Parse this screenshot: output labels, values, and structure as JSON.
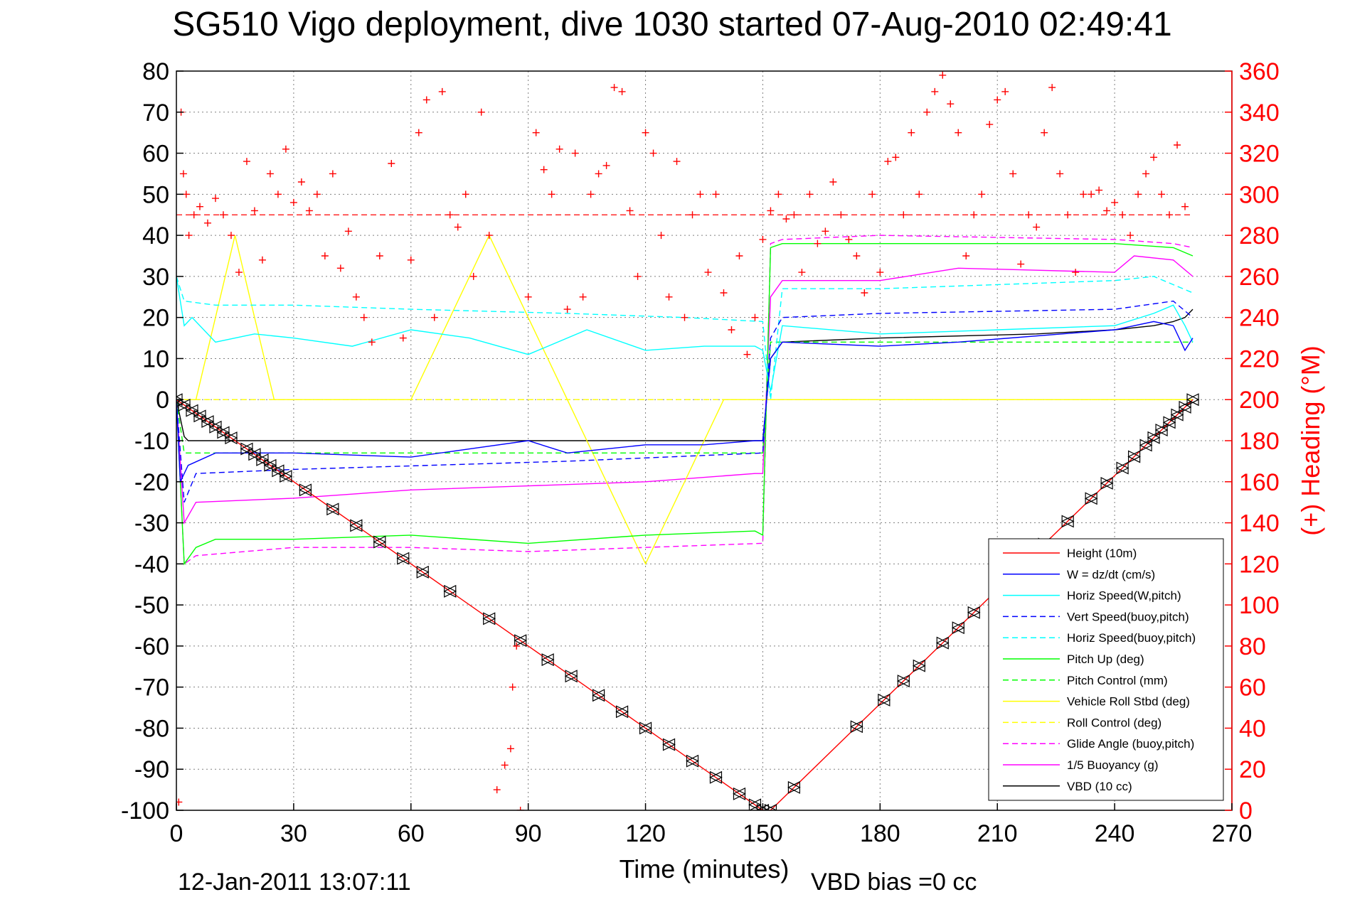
{
  "figure": {
    "title": "SG510 Vigo deployment, dive 1030 started 07-Aug-2010 02:49:41",
    "timestamp": "12-Jan-2011 13:07:11",
    "vbd_bias": "VBD bias =0 cc",
    "colors": {
      "background": "#ffffff",
      "axes": "#000000",
      "right_axis": "#ff0000",
      "grid": "#808080",
      "heading_marker": "#ff0000"
    }
  },
  "chart_data": {
    "type": "line",
    "xlabel": "Time (minutes)",
    "ylabel": "",
    "y2label": "(+) Heading (°M)",
    "xlim": [
      0,
      270
    ],
    "ylim": [
      -100,
      80
    ],
    "y2lim": [
      0,
      360
    ],
    "xticks": [
      0,
      30,
      60,
      90,
      120,
      150,
      180,
      210,
      240,
      270
    ],
    "yticks": [
      80,
      70,
      60,
      50,
      40,
      30,
      20,
      10,
      0,
      -10,
      -20,
      -30,
      -40,
      -50,
      -60,
      -70,
      -80,
      -90,
      -100
    ],
    "y2ticks": [
      360,
      340,
      320,
      300,
      280,
      260,
      240,
      220,
      200,
      180,
      160,
      140,
      120,
      100,
      80,
      60,
      40,
      20,
      0
    ],
    "grid": true,
    "legend_position": "bottom-right",
    "series": [
      {
        "name": "Height (10m)",
        "color": "#ff0000",
        "dash": "solid",
        "markers": "triangles",
        "x": [
          0,
          150,
          152,
          260
        ],
        "y": [
          0,
          -100,
          -100,
          0
        ]
      },
      {
        "name": "W = dz/dt (cm/s)",
        "color": "#0000ff",
        "dash": "solid",
        "x": [
          0,
          1,
          3,
          10,
          30,
          60,
          75,
          90,
          100,
          110,
          120,
          135,
          148,
          150,
          152,
          155,
          180,
          200,
          240,
          250,
          255,
          258,
          260
        ],
        "y": [
          0,
          -20,
          -16,
          -13,
          -13,
          -14,
          -12,
          -10,
          -13,
          -12,
          -11,
          -11,
          -10,
          -10,
          10,
          14,
          13,
          14,
          17,
          19,
          18,
          12,
          15
        ]
      },
      {
        "name": "Horiz Speed(W,pitch)",
        "color": "#00ffff",
        "dash": "solid",
        "x": [
          0,
          2,
          4,
          10,
          20,
          30,
          45,
          60,
          75,
          90,
          105,
          120,
          135,
          148,
          150,
          152,
          155,
          180,
          210,
          240,
          250,
          255,
          258,
          260
        ],
        "y": [
          30,
          18,
          20,
          14,
          16,
          15,
          13,
          17,
          15,
          11,
          17,
          12,
          13,
          13,
          12,
          2,
          18,
          16,
          17,
          18,
          21,
          23,
          18,
          14
        ]
      },
      {
        "name": "Vert Speed(buoy,pitch)",
        "color": "#0000ff",
        "dash": "dashed",
        "x": [
          0,
          2,
          5,
          30,
          100,
          150,
          152,
          155,
          180,
          240,
          255,
          260
        ],
        "y": [
          0,
          -25,
          -18,
          -17,
          -15,
          -13,
          15,
          20,
          21,
          22,
          24,
          20
        ]
      },
      {
        "name": "Horiz Speed(buoy,pitch)",
        "color": "#00ffff",
        "dash": "dashed",
        "x": [
          0,
          2,
          10,
          30,
          60,
          100,
          130,
          150,
          152,
          155,
          180,
          240,
          250,
          260
        ],
        "y": [
          30,
          24,
          23,
          23,
          22,
          21,
          20,
          19,
          0,
          27,
          27,
          29,
          30,
          26
        ]
      },
      {
        "name": "Pitch Up (deg)",
        "color": "#00ff00",
        "dash": "solid",
        "x": [
          0,
          2,
          5,
          10,
          30,
          60,
          90,
          120,
          148,
          150,
          152,
          155,
          180,
          240,
          255,
          260
        ],
        "y": [
          0,
          -40,
          -36,
          -34,
          -34,
          -33,
          -35,
          -33,
          -32,
          -33,
          37,
          38,
          38,
          38,
          37,
          35
        ]
      },
      {
        "name": "Pitch Control (mm)",
        "color": "#00ff00",
        "dash": "dashed",
        "x": [
          0,
          2,
          30,
          100,
          150,
          152,
          155,
          240,
          260
        ],
        "y": [
          0,
          -13,
          -13,
          -13,
          -13,
          14,
          14,
          14,
          14
        ]
      },
      {
        "name": "Vehicle Roll Stbd (deg)",
        "color": "#ffff00",
        "dash": "solid",
        "x": [
          0,
          5,
          15,
          25,
          40,
          60,
          80,
          100,
          120,
          140,
          150,
          152,
          180,
          220,
          240,
          260
        ],
        "y": [
          0,
          0,
          40,
          0,
          0,
          0,
          40,
          0,
          -40,
          0,
          0,
          0,
          0,
          0,
          0,
          0
        ]
      },
      {
        "name": "Roll Control (deg)",
        "color": "#ffff00",
        "dash": "dashed",
        "x": [
          0,
          150,
          152,
          260
        ],
        "y": [
          0,
          0,
          0,
          0
        ]
      },
      {
        "name": "Glide Angle (buoy,pitch)",
        "color": "#ff00ff",
        "dash": "dashed",
        "x": [
          0,
          2,
          5,
          30,
          60,
          90,
          120,
          150,
          152,
          155,
          180,
          240,
          255,
          260
        ],
        "y": [
          0,
          -40,
          -38,
          -36,
          -36,
          -37,
          -36,
          -35,
          38,
          39,
          40,
          39,
          38,
          37
        ]
      },
      {
        "name": "1/5 Buoyancy (g)",
        "color": "#ff00ff",
        "dash": "solid",
        "x": [
          0,
          2,
          5,
          30,
          60,
          90,
          120,
          148,
          150,
          152,
          155,
          180,
          200,
          240,
          245,
          255,
          260
        ],
        "y": [
          0,
          -30,
          -25,
          -24,
          -22,
          -21,
          -20,
          -18,
          -18,
          25,
          29,
          29,
          32,
          31,
          35,
          34,
          30
        ]
      },
      {
        "name": "VBD (10 cc)",
        "color": "#000000",
        "dash": "solid",
        "x": [
          0,
          2,
          3,
          148,
          150,
          152,
          155,
          180,
          220,
          240,
          250,
          255,
          258,
          260
        ],
        "y": [
          0,
          -9,
          -10,
          -10,
          -10,
          10,
          14,
          15,
          16,
          17,
          18,
          19,
          20,
          22
        ]
      }
    ],
    "heading_points": {
      "name": "(+) Heading",
      "color": "#ff0000",
      "axis": "right",
      "x": [
        0.6,
        1.2,
        1.8,
        2.5,
        3.2,
        4.5,
        6,
        8,
        10,
        12,
        14,
        16,
        18,
        20,
        22,
        24,
        26,
        28,
        30,
        32,
        34,
        36,
        38,
        40,
        42,
        44,
        46,
        48,
        50,
        52,
        55,
        58,
        60,
        62,
        64,
        66,
        68,
        70,
        72,
        74,
        76,
        78,
        80,
        82,
        84,
        85.5,
        86,
        87,
        88,
        90,
        92,
        94,
        96,
        98,
        100,
        102,
        104,
        106,
        108,
        110,
        112,
        114,
        116,
        118,
        120,
        122,
        124,
        126,
        128,
        130,
        132,
        134,
        136,
        138,
        140,
        142,
        144,
        146,
        148,
        150,
        152,
        154,
        156,
        158,
        160,
        162,
        164,
        166,
        168,
        170,
        172,
        174,
        176,
        178,
        180,
        182,
        184,
        186,
        188,
        190,
        192,
        194,
        196,
        198,
        200,
        202,
        204,
        206,
        208,
        210,
        212,
        214,
        216,
        218,
        220,
        222,
        224,
        226,
        228,
        230,
        232,
        234,
        236,
        238,
        240,
        242,
        244,
        246,
        248,
        250,
        252,
        254,
        256,
        258
      ],
      "y": [
        4,
        340,
        310,
        300,
        280,
        290,
        294,
        286,
        298,
        290,
        280,
        262,
        316,
        292,
        268,
        310,
        300,
        322,
        296,
        306,
        292,
        300,
        270,
        310,
        264,
        282,
        250,
        240,
        228,
        270,
        315,
        230,
        268,
        330,
        346,
        240,
        350,
        290,
        284,
        300,
        260,
        340,
        280,
        10,
        22,
        30,
        60,
        80,
        0,
        250,
        330,
        312,
        300,
        322,
        244,
        320,
        250,
        300,
        310,
        314,
        352,
        350,
        292,
        260,
        330,
        320,
        280,
        250,
        316,
        240,
        290,
        300,
        262,
        300,
        252,
        234,
        270,
        222,
        240,
        278,
        292,
        300,
        288,
        290,
        262,
        300,
        276,
        282,
        306,
        290,
        278,
        270,
        252,
        300,
        262,
        316,
        318,
        290,
        330,
        300,
        340,
        350,
        358,
        344,
        330,
        270,
        290,
        300,
        334,
        346,
        350,
        310,
        266,
        290,
        284,
        330,
        352,
        310,
        290,
        262,
        300,
        300,
        302,
        292,
        296,
        290,
        280,
        300,
        310,
        318,
        300,
        290,
        324,
        294
      ]
    }
  },
  "legend": {
    "entries": [
      {
        "label": "Height (10m)",
        "color": "#ff0000",
        "dash": "solid"
      },
      {
        "label": "W = dz/dt (cm/s)",
        "color": "#0000ff",
        "dash": "solid"
      },
      {
        "label": "Horiz Speed(W,pitch)",
        "color": "#00ffff",
        "dash": "solid"
      },
      {
        "label": "Vert Speed(buoy,pitch)",
        "color": "#0000ff",
        "dash": "dashed"
      },
      {
        "label": "Horiz Speed(buoy,pitch)",
        "color": "#00ffff",
        "dash": "dashed"
      },
      {
        "label": "Pitch Up (deg)",
        "color": "#00ff00",
        "dash": "solid"
      },
      {
        "label": "Pitch Control (mm)",
        "color": "#00ff00",
        "dash": "dashed"
      },
      {
        "label": "Vehicle Roll Stbd (deg)",
        "color": "#ffff00",
        "dash": "solid"
      },
      {
        "label": "Roll Control (deg)",
        "color": "#ffff00",
        "dash": "dashed"
      },
      {
        "label": "Glide Angle (buoy,pitch)",
        "color": "#ff00ff",
        "dash": "dashed"
      },
      {
        "label": "1/5 Buoyancy (g)",
        "color": "#ff00ff",
        "dash": "solid"
      },
      {
        "label": "VBD (10 cc)",
        "color": "#000000",
        "dash": "solid"
      }
    ]
  },
  "reference_lines": {
    "heading_reference": {
      "axis": "right",
      "value": 290,
      "color": "#ff0000",
      "dash": "dashed"
    }
  }
}
